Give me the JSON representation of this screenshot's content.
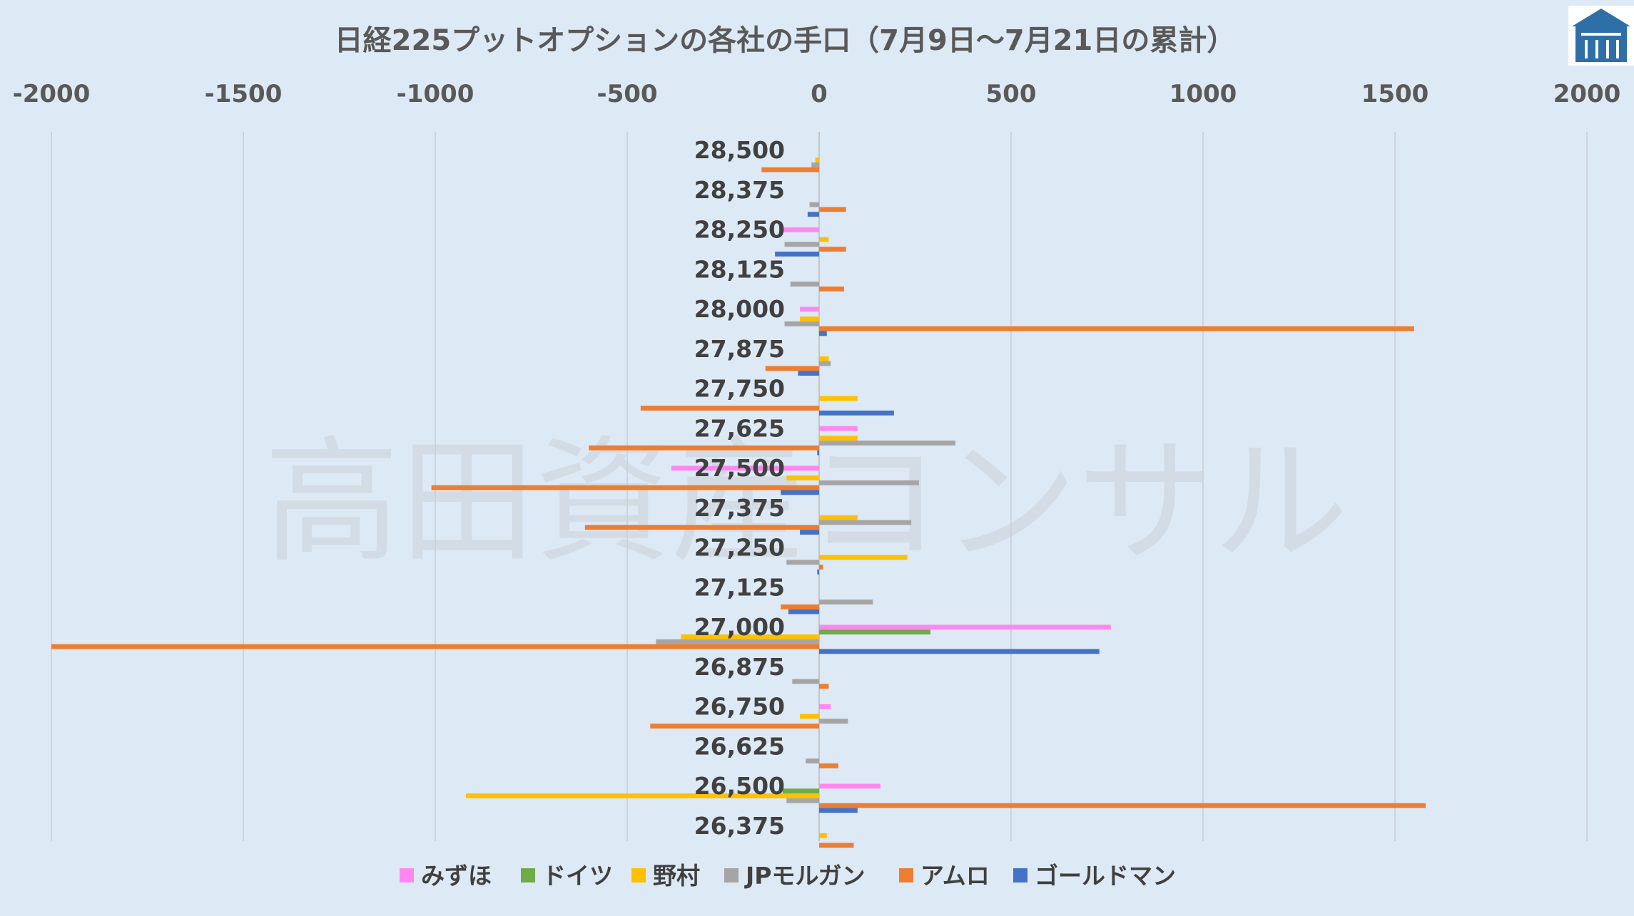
{
  "watermark": "高田資産コンサル",
  "colors": {
    "background": "#dde9f5",
    "grid": "#c8ced6",
    "logo": "#2e6fa8"
  },
  "chart_data": {
    "type": "bar",
    "orientation": "horizontal",
    "title": "日経225プットオプションの各社の手口（7月9日～7月21日の累計）",
    "xlim": [
      -2000,
      2000
    ],
    "xticks": [
      -2000,
      -1500,
      -1000,
      -500,
      0,
      500,
      1000,
      1500,
      2000
    ],
    "xtick_labels": [
      "-2000",
      "-1500",
      "-1000",
      "-500",
      "0",
      "500",
      "1000",
      "1500",
      "2000"
    ],
    "axis_position": "top",
    "grid": true,
    "legend_position": "bottom",
    "categories": [
      "28,500",
      "28,375",
      "28,250",
      "28,125",
      "28,000",
      "27,875",
      "27,750",
      "27,625",
      "27,500",
      "27,375",
      "27,250",
      "27,125",
      "27,000",
      "26,875",
      "26,750",
      "26,625",
      "26,500",
      "26,375"
    ],
    "series": [
      {
        "name": "みずほ",
        "color": "#ff88f0",
        "values": [
          0,
          0,
          -100,
          0,
          -50,
          0,
          0,
          100,
          -385,
          0,
          0,
          0,
          760,
          0,
          30,
          0,
          160,
          0
        ]
      },
      {
        "name": "ドイツ",
        "color": "#6fac47",
        "values": [
          0,
          0,
          0,
          0,
          0,
          0,
          0,
          0,
          0,
          0,
          0,
          0,
          290,
          0,
          0,
          0,
          -95,
          0
        ]
      },
      {
        "name": "野村",
        "color": "#ffc000",
        "values": [
          -10,
          0,
          25,
          0,
          -50,
          25,
          100,
          100,
          -85,
          100,
          230,
          0,
          -360,
          0,
          -50,
          0,
          -920,
          20
        ]
      },
      {
        "name": "JPモルガン",
        "color": "#a5a5a5",
        "values": [
          -20,
          -25,
          -90,
          -75,
          -90,
          30,
          0,
          355,
          260,
          240,
          -85,
          140,
          -425,
          -70,
          75,
          -35,
          -85,
          0
        ]
      },
      {
        "name": "アムロ",
        "color": "#ed7d31",
        "values": [
          -150,
          70,
          70,
          65,
          1550,
          -140,
          -465,
          -600,
          -1010,
          -610,
          10,
          -100,
          -2000,
          25,
          -440,
          50,
          1580,
          90
        ]
      },
      {
        "name": "ゴールドマン",
        "color": "#4472c4",
        "values": [
          0,
          -30,
          -115,
          0,
          20,
          -55,
          195,
          -5,
          -100,
          -50,
          -5,
          -80,
          730,
          0,
          0,
          0,
          100,
          0
        ]
      }
    ]
  }
}
